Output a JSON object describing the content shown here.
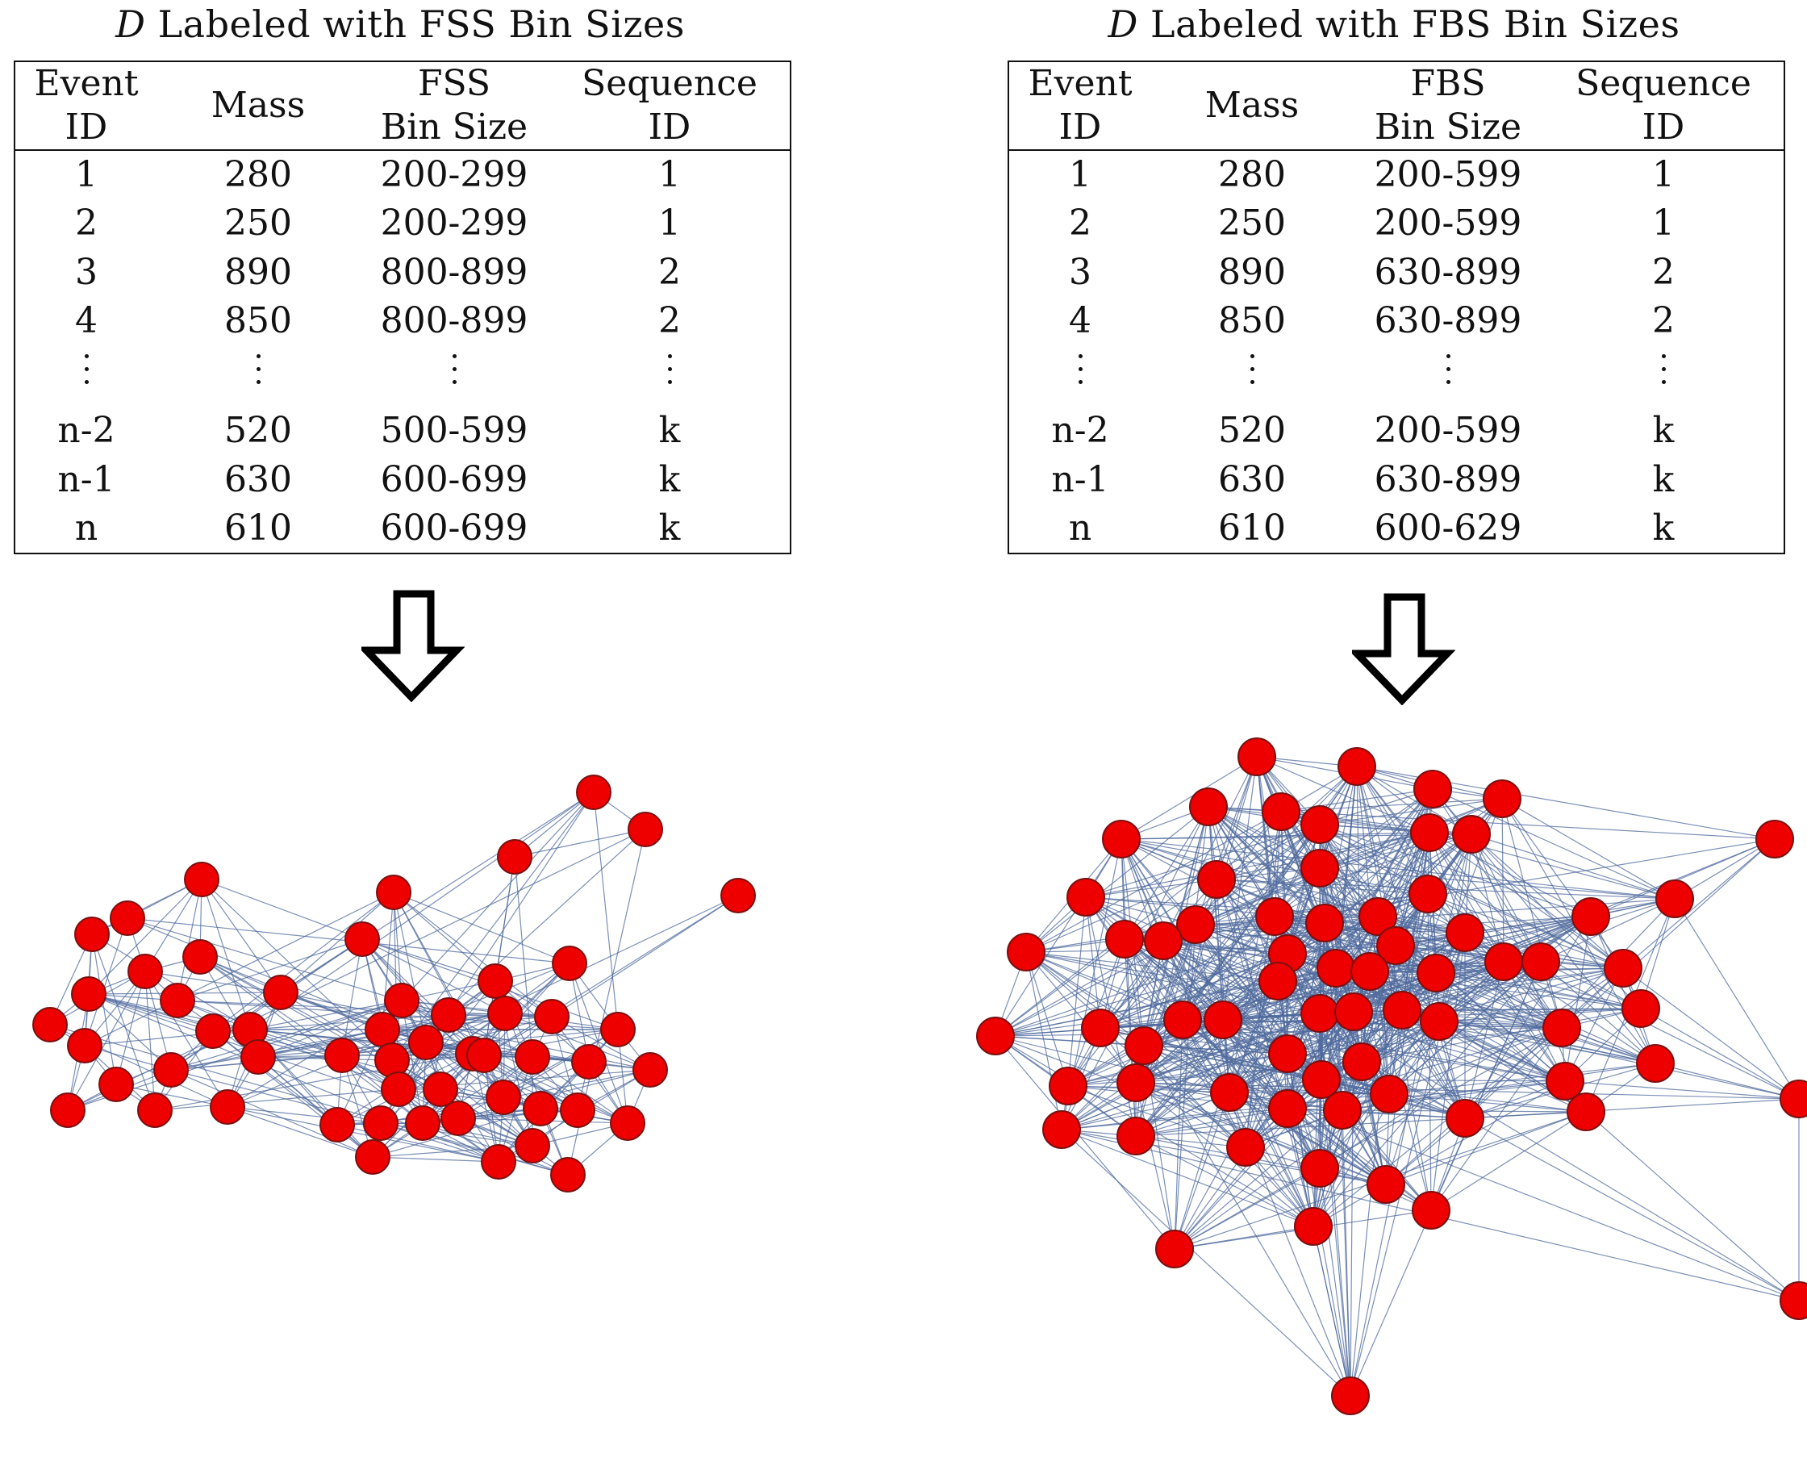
{
  "left": {
    "title_var": "D",
    "title_rest": " Labeled with FSS Bin Sizes",
    "headers": [
      [
        "Event",
        "ID"
      ],
      [
        "Mass"
      ],
      [
        "FSS",
        "Bin Size"
      ],
      [
        "Sequence",
        "ID"
      ]
    ],
    "rows": [
      [
        "1",
        "280",
        "200-299",
        "1"
      ],
      [
        "2",
        "250",
        "200-299",
        "1"
      ],
      [
        "3",
        "890",
        "800-899",
        "2"
      ],
      [
        "4",
        "850",
        "800-899",
        "2"
      ],
      [
        "n-2",
        "520",
        "500-599",
        "k"
      ],
      [
        "n-1",
        "630",
        "600-699",
        "k"
      ],
      [
        "n",
        "610",
        "600-699",
        "k"
      ]
    ]
  },
  "right": {
    "title_var": "D",
    "title_rest": " Labeled with FBS Bin Sizes",
    "headers": [
      [
        "Event",
        "ID"
      ],
      [
        "Mass"
      ],
      [
        "FBS",
        "Bin Size"
      ],
      [
        "Sequence",
        "ID"
      ]
    ],
    "rows": [
      [
        "1",
        "280",
        "200-599",
        "1"
      ],
      [
        "2",
        "250",
        "200-599",
        "1"
      ],
      [
        "3",
        "890",
        "630-899",
        "2"
      ],
      [
        "4",
        "850",
        "630-899",
        "2"
      ],
      [
        "n-2",
        "520",
        "200-599",
        "k"
      ],
      [
        "n-1",
        "630",
        "630-899",
        "k"
      ],
      [
        "n",
        "610",
        "600-629",
        "k"
      ]
    ]
  },
  "colors": {
    "node_fill": "#ee0000",
    "edge": "#4f6a9c",
    "arrow": "#000000"
  }
}
